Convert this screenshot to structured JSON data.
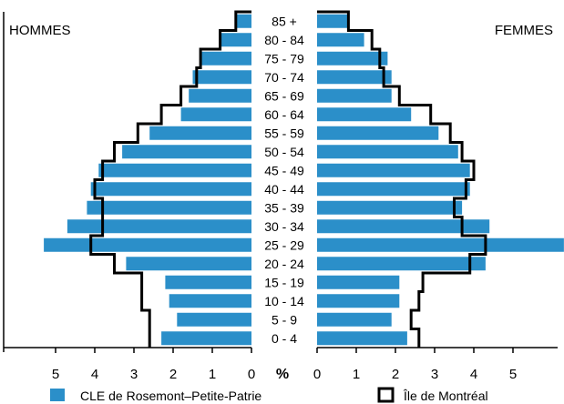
{
  "chart_data": {
    "type": "bar",
    "subtype": "population-pyramid",
    "left_label": "HOMMES",
    "right_label": "FEMMES",
    "axis_unit_label": "%",
    "x_ticks": [
      5,
      4,
      3,
      2,
      1,
      0
    ],
    "x_ticks_right": [
      0,
      1,
      2,
      3,
      4,
      5
    ],
    "xlim": [
      0,
      6.3
    ],
    "categories": [
      "85 +",
      "80 - 84",
      "75 - 79",
      "70 - 74",
      "65 - 69",
      "60 - 64",
      "55 - 59",
      "50 - 54",
      "45 - 49",
      "40 - 44",
      "35 - 39",
      "30 - 34",
      "25 - 29",
      "20 - 24",
      "15 - 19",
      "10 - 14",
      "5 - 9",
      "0 - 4"
    ],
    "series": [
      {
        "name": "CLE de Rosemont–Petite-Patrie",
        "style": "filled-bar",
        "color": "#2b8fc9",
        "hommes": [
          0.4,
          0.8,
          1.3,
          1.5,
          1.6,
          1.8,
          2.6,
          3.3,
          3.9,
          4.1,
          4.2,
          4.7,
          5.3,
          3.2,
          2.2,
          2.1,
          1.9,
          2.3
        ],
        "femmes": [
          0.8,
          1.2,
          1.8,
          1.9,
          1.9,
          2.4,
          3.1,
          3.6,
          3.9,
          3.9,
          3.7,
          4.4,
          6.3,
          4.3,
          2.1,
          2.1,
          1.9,
          2.3
        ]
      },
      {
        "name": "Île de Montréal",
        "style": "outline",
        "color": "#000000",
        "hommes": [
          0.4,
          0.8,
          1.3,
          1.4,
          1.8,
          2.3,
          2.9,
          3.5,
          3.8,
          4.0,
          3.8,
          3.8,
          4.1,
          3.5,
          2.8,
          2.8,
          2.6,
          2.6
        ],
        "femmes": [
          0.8,
          1.4,
          1.6,
          1.7,
          2.1,
          2.9,
          3.4,
          3.7,
          4.0,
          3.8,
          3.5,
          3.7,
          4.3,
          3.9,
          2.7,
          2.6,
          2.4,
          2.6
        ]
      }
    ]
  }
}
